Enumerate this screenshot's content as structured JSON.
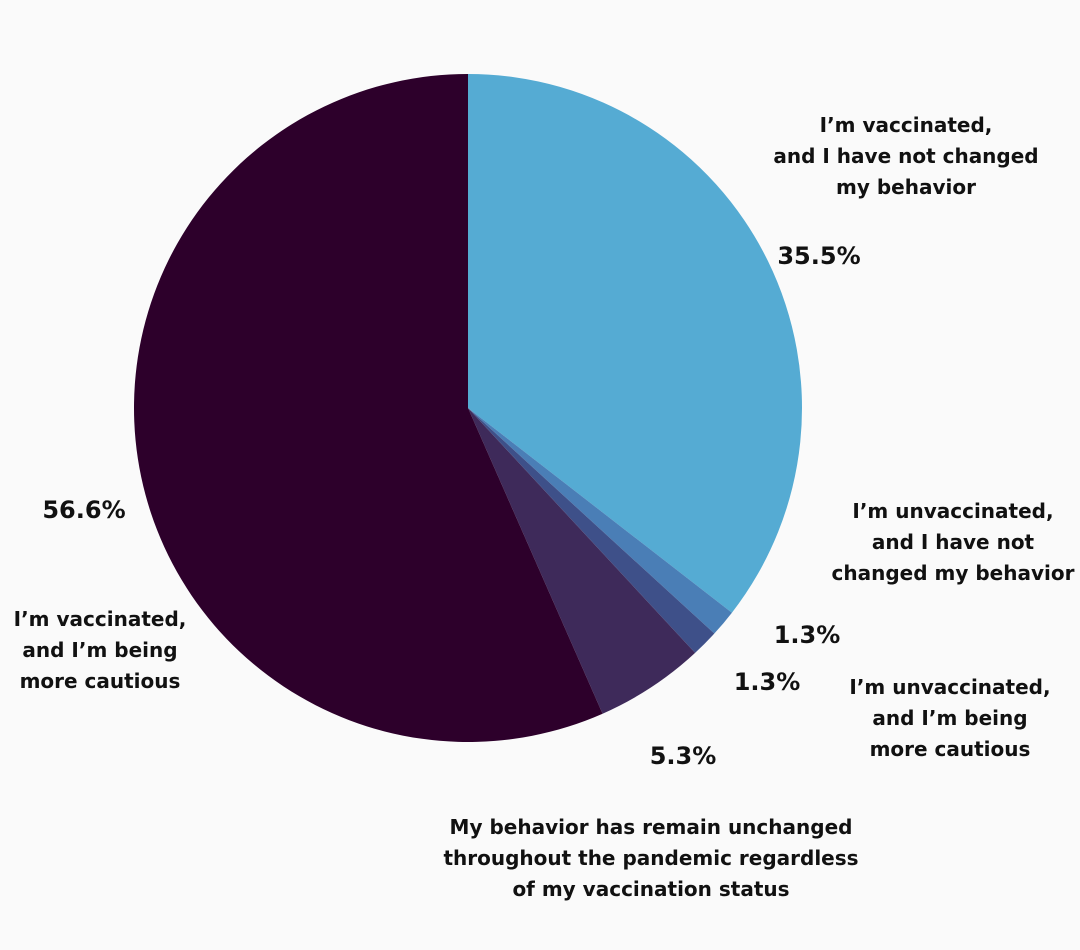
{
  "chart_data": {
    "type": "pie",
    "start_angle_deg": 0,
    "direction": "clockwise",
    "slices": [
      {
        "name": "I’m vaccinated,\nand I have not changed\nmy behavior",
        "value": 35.5,
        "percent_label": "35.5%",
        "color": "#55abd3"
      },
      {
        "name": "I’m unvaccinated,\nand I have not\nchanged my behavior",
        "value": 1.3,
        "percent_label": "1.3%",
        "color": "#4a7eb6"
      },
      {
        "name": "I’m unvaccinated,\nand I’m being\nmore cautious",
        "value": 1.3,
        "percent_label": "1.3%",
        "color": "#3e5089"
      },
      {
        "name": "My behavior has remain unchanged\nthroughout the pandemic regardless\nof my vaccination status",
        "value": 5.3,
        "percent_label": "5.3%",
        "color": "#3e2a5a"
      },
      {
        "name": "I’m vaccinated,\nand I’m being\nmore cautious",
        "value": 56.6,
        "percent_label": "56.6%",
        "color": "#2d002b"
      }
    ]
  }
}
